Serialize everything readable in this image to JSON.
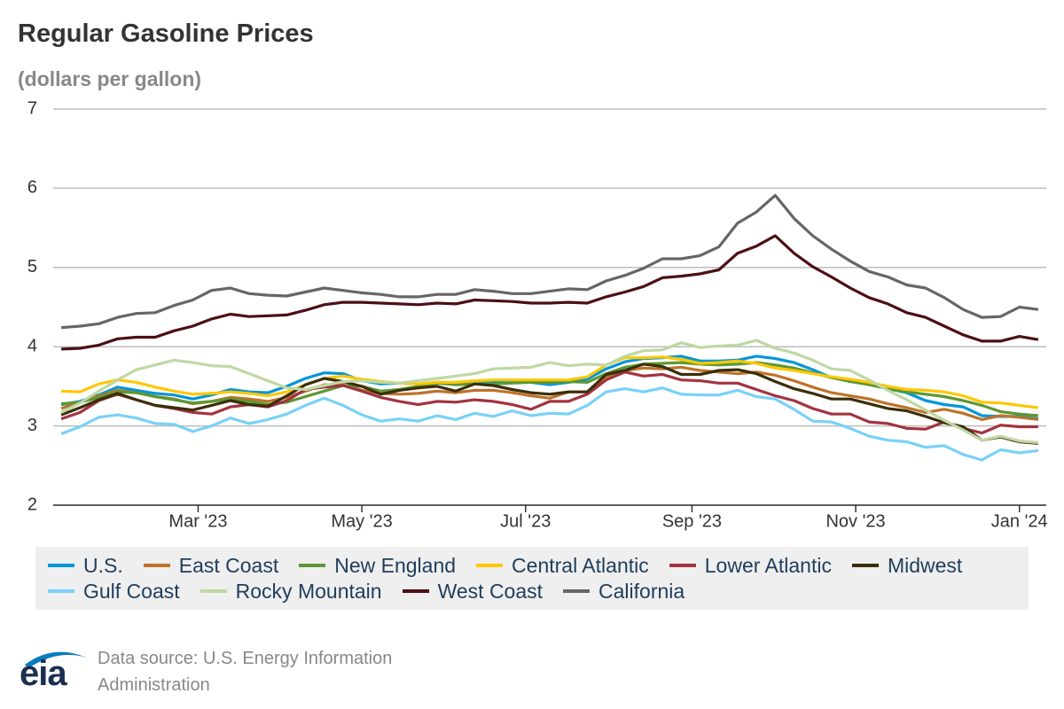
{
  "chart_data": {
    "type": "line",
    "title": "Regular Gasoline Prices",
    "subtitle": "(dollars per gallon)",
    "source": "Data source: U.S. Energy Information Administration",
    "logo": "eia",
    "x": [
      "2023-01-09",
      "2023-01-16",
      "2023-01-23",
      "2023-01-30",
      "2023-02-06",
      "2023-02-13",
      "2023-02-20",
      "2023-02-27",
      "2023-03-06",
      "2023-03-13",
      "2023-03-20",
      "2023-03-27",
      "2023-04-03",
      "2023-04-10",
      "2023-04-17",
      "2023-04-24",
      "2023-05-01",
      "2023-05-08",
      "2023-05-15",
      "2023-05-22",
      "2023-05-29",
      "2023-06-05",
      "2023-06-12",
      "2023-06-19",
      "2023-06-26",
      "2023-07-03",
      "2023-07-10",
      "2023-07-17",
      "2023-07-24",
      "2023-07-31",
      "2023-08-07",
      "2023-08-14",
      "2023-08-21",
      "2023-08-28",
      "2023-09-04",
      "2023-09-11",
      "2023-09-18",
      "2023-09-25",
      "2023-10-02",
      "2023-10-09",
      "2023-10-16",
      "2023-10-23",
      "2023-10-30",
      "2023-11-06",
      "2023-11-13",
      "2023-11-20",
      "2023-11-27",
      "2023-12-04",
      "2023-12-11",
      "2023-12-18",
      "2023-12-25",
      "2024-01-01",
      "2024-01-08"
    ],
    "xlim": [
      "2023-01-06",
      "2024-01-11"
    ],
    "xticks": [
      {
        "value": "2023-03-01",
        "label": "Mar '23"
      },
      {
        "value": "2023-05-01",
        "label": "May '23"
      },
      {
        "value": "2023-07-01",
        "label": "Jul '23"
      },
      {
        "value": "2023-09-01",
        "label": "Sep '23"
      },
      {
        "value": "2023-11-01",
        "label": "Nov '23"
      },
      {
        "value": "2024-01-01",
        "label": "Jan '24"
      }
    ],
    "ylim": [
      2,
      7
    ],
    "yticks": [
      2,
      3,
      4,
      5,
      6,
      7
    ],
    "grid": true,
    "series": [
      {
        "name": "U.S.",
        "color": "#0096d7",
        "values": [
          3.27,
          3.31,
          3.39,
          3.49,
          3.45,
          3.41,
          3.39,
          3.34,
          3.39,
          3.46,
          3.43,
          3.42,
          3.5,
          3.6,
          3.67,
          3.66,
          3.57,
          3.53,
          3.54,
          3.53,
          3.55,
          3.53,
          3.57,
          3.56,
          3.55,
          3.55,
          3.52,
          3.55,
          3.59,
          3.72,
          3.81,
          3.85,
          3.86,
          3.88,
          3.82,
          3.82,
          3.83,
          3.88,
          3.85,
          3.8,
          3.71,
          3.61,
          3.57,
          3.53,
          3.47,
          3.42,
          3.32,
          3.27,
          3.24,
          3.13,
          3.12,
          3.12,
          3.09
        ]
      },
      {
        "name": "East Coast",
        "color": "#bd732a",
        "values": [
          3.22,
          3.3,
          3.38,
          3.45,
          3.42,
          3.37,
          3.34,
          3.28,
          3.31,
          3.36,
          3.34,
          3.31,
          3.36,
          3.44,
          3.52,
          3.52,
          3.45,
          3.41,
          3.4,
          3.41,
          3.44,
          3.42,
          3.45,
          3.45,
          3.42,
          3.38,
          3.35,
          3.43,
          3.43,
          3.62,
          3.7,
          3.73,
          3.72,
          3.74,
          3.7,
          3.68,
          3.66,
          3.68,
          3.64,
          3.57,
          3.49,
          3.42,
          3.38,
          3.34,
          3.28,
          3.23,
          3.17,
          3.21,
          3.16,
          3.08,
          3.13,
          3.11,
          3.08
        ]
      },
      {
        "name": "New England",
        "color": "#5d9732",
        "values": [
          3.28,
          3.3,
          3.36,
          3.43,
          3.42,
          3.37,
          3.33,
          3.29,
          3.31,
          3.34,
          3.31,
          3.27,
          3.3,
          3.37,
          3.44,
          3.51,
          3.5,
          3.44,
          3.46,
          3.5,
          3.54,
          3.52,
          3.53,
          3.53,
          3.54,
          3.55,
          3.55,
          3.56,
          3.55,
          3.66,
          3.74,
          3.78,
          3.79,
          3.8,
          3.78,
          3.77,
          3.78,
          3.8,
          3.77,
          3.73,
          3.67,
          3.61,
          3.56,
          3.52,
          3.47,
          3.43,
          3.4,
          3.37,
          3.32,
          3.26,
          3.18,
          3.15,
          3.13
        ]
      },
      {
        "name": "Central Atlantic",
        "color": "#ffc702",
        "values": [
          3.44,
          3.43,
          3.53,
          3.58,
          3.55,
          3.49,
          3.44,
          3.4,
          3.41,
          3.43,
          3.41,
          3.38,
          3.43,
          3.52,
          3.6,
          3.63,
          3.59,
          3.56,
          3.54,
          3.53,
          3.55,
          3.55,
          3.57,
          3.58,
          3.58,
          3.58,
          3.58,
          3.58,
          3.62,
          3.77,
          3.86,
          3.86,
          3.87,
          3.84,
          3.79,
          3.8,
          3.82,
          3.79,
          3.73,
          3.7,
          3.66,
          3.62,
          3.59,
          3.55,
          3.5,
          3.46,
          3.45,
          3.43,
          3.38,
          3.3,
          3.29,
          3.26,
          3.23
        ]
      },
      {
        "name": "Lower Atlantic",
        "color": "#a33340",
        "values": [
          3.09,
          3.17,
          3.32,
          3.4,
          3.33,
          3.26,
          3.22,
          3.17,
          3.15,
          3.24,
          3.27,
          3.24,
          3.32,
          3.46,
          3.49,
          3.51,
          3.44,
          3.36,
          3.31,
          3.27,
          3.31,
          3.3,
          3.33,
          3.31,
          3.27,
          3.21,
          3.31,
          3.31,
          3.4,
          3.58,
          3.68,
          3.63,
          3.65,
          3.58,
          3.57,
          3.54,
          3.54,
          3.46,
          3.38,
          3.32,
          3.22,
          3.15,
          3.15,
          3.05,
          3.03,
          2.97,
          2.96,
          3.05,
          2.97,
          2.91,
          3.01,
          2.99,
          2.99
        ]
      },
      {
        "name": "Midwest",
        "color": "#3b2e0a",
        "values": [
          3.14,
          3.23,
          3.33,
          3.41,
          3.33,
          3.26,
          3.23,
          3.2,
          3.26,
          3.32,
          3.27,
          3.25,
          3.38,
          3.52,
          3.6,
          3.56,
          3.5,
          3.4,
          3.45,
          3.48,
          3.5,
          3.44,
          3.53,
          3.51,
          3.46,
          3.42,
          3.4,
          3.43,
          3.43,
          3.65,
          3.7,
          3.78,
          3.75,
          3.65,
          3.65,
          3.7,
          3.71,
          3.66,
          3.56,
          3.47,
          3.41,
          3.34,
          3.34,
          3.28,
          3.22,
          3.19,
          3.12,
          3.04,
          2.99,
          2.82,
          2.86,
          2.8,
          2.78
        ]
      },
      {
        "name": "Gulf Coast",
        "color": "#79d1f8",
        "values": [
          2.9,
          2.99,
          3.11,
          3.14,
          3.1,
          3.03,
          3.02,
          2.93,
          3.0,
          3.1,
          3.03,
          3.08,
          3.15,
          3.26,
          3.35,
          3.26,
          3.14,
          3.06,
          3.09,
          3.06,
          3.13,
          3.08,
          3.16,
          3.12,
          3.19,
          3.13,
          3.16,
          3.15,
          3.26,
          3.43,
          3.47,
          3.43,
          3.48,
          3.4,
          3.39,
          3.39,
          3.45,
          3.37,
          3.34,
          3.21,
          3.06,
          3.05,
          2.97,
          2.87,
          2.82,
          2.8,
          2.73,
          2.75,
          2.64,
          2.57,
          2.7,
          2.66,
          2.69
        ]
      },
      {
        "name": "Rocky Mountain",
        "color": "#bfd8a3",
        "values": [
          3.17,
          3.29,
          3.44,
          3.58,
          3.71,
          3.77,
          3.83,
          3.8,
          3.76,
          3.75,
          3.66,
          3.57,
          3.48,
          3.46,
          3.51,
          3.56,
          3.57,
          3.55,
          3.54,
          3.57,
          3.6,
          3.63,
          3.66,
          3.72,
          3.73,
          3.74,
          3.8,
          3.76,
          3.78,
          3.77,
          3.88,
          3.95,
          3.96,
          4.05,
          3.99,
          4.01,
          4.02,
          4.08,
          3.98,
          3.92,
          3.83,
          3.72,
          3.7,
          3.58,
          3.45,
          3.33,
          3.2,
          3.07,
          2.95,
          2.82,
          2.87,
          2.81,
          2.79
        ]
      },
      {
        "name": "West Coast",
        "color": "#4c0f14",
        "values": [
          3.97,
          3.98,
          4.02,
          4.1,
          4.12,
          4.12,
          4.2,
          4.26,
          4.35,
          4.41,
          4.38,
          4.39,
          4.4,
          4.46,
          4.53,
          4.56,
          4.56,
          4.55,
          4.54,
          4.53,
          4.55,
          4.54,
          4.59,
          4.58,
          4.57,
          4.55,
          4.55,
          4.56,
          4.55,
          4.63,
          4.69,
          4.76,
          4.87,
          4.89,
          4.92,
          4.97,
          5.18,
          5.27,
          5.4,
          5.18,
          5.01,
          4.88,
          4.74,
          4.62,
          4.54,
          4.43,
          4.37,
          4.26,
          4.15,
          4.07,
          4.07,
          4.13,
          4.09
        ]
      },
      {
        "name": "California",
        "color": "#666666",
        "values": [
          4.24,
          4.26,
          4.29,
          4.37,
          4.42,
          4.43,
          4.52,
          4.59,
          4.71,
          4.74,
          4.67,
          4.65,
          4.64,
          4.69,
          4.74,
          4.71,
          4.68,
          4.66,
          4.63,
          4.63,
          4.66,
          4.66,
          4.72,
          4.7,
          4.67,
          4.67,
          4.7,
          4.73,
          4.72,
          4.83,
          4.9,
          4.99,
          5.11,
          5.11,
          5.15,
          5.26,
          5.56,
          5.7,
          5.91,
          5.62,
          5.4,
          5.23,
          5.08,
          4.95,
          4.88,
          4.78,
          4.74,
          4.62,
          4.47,
          4.37,
          4.38,
          4.5,
          4.47
        ]
      }
    ]
  }
}
